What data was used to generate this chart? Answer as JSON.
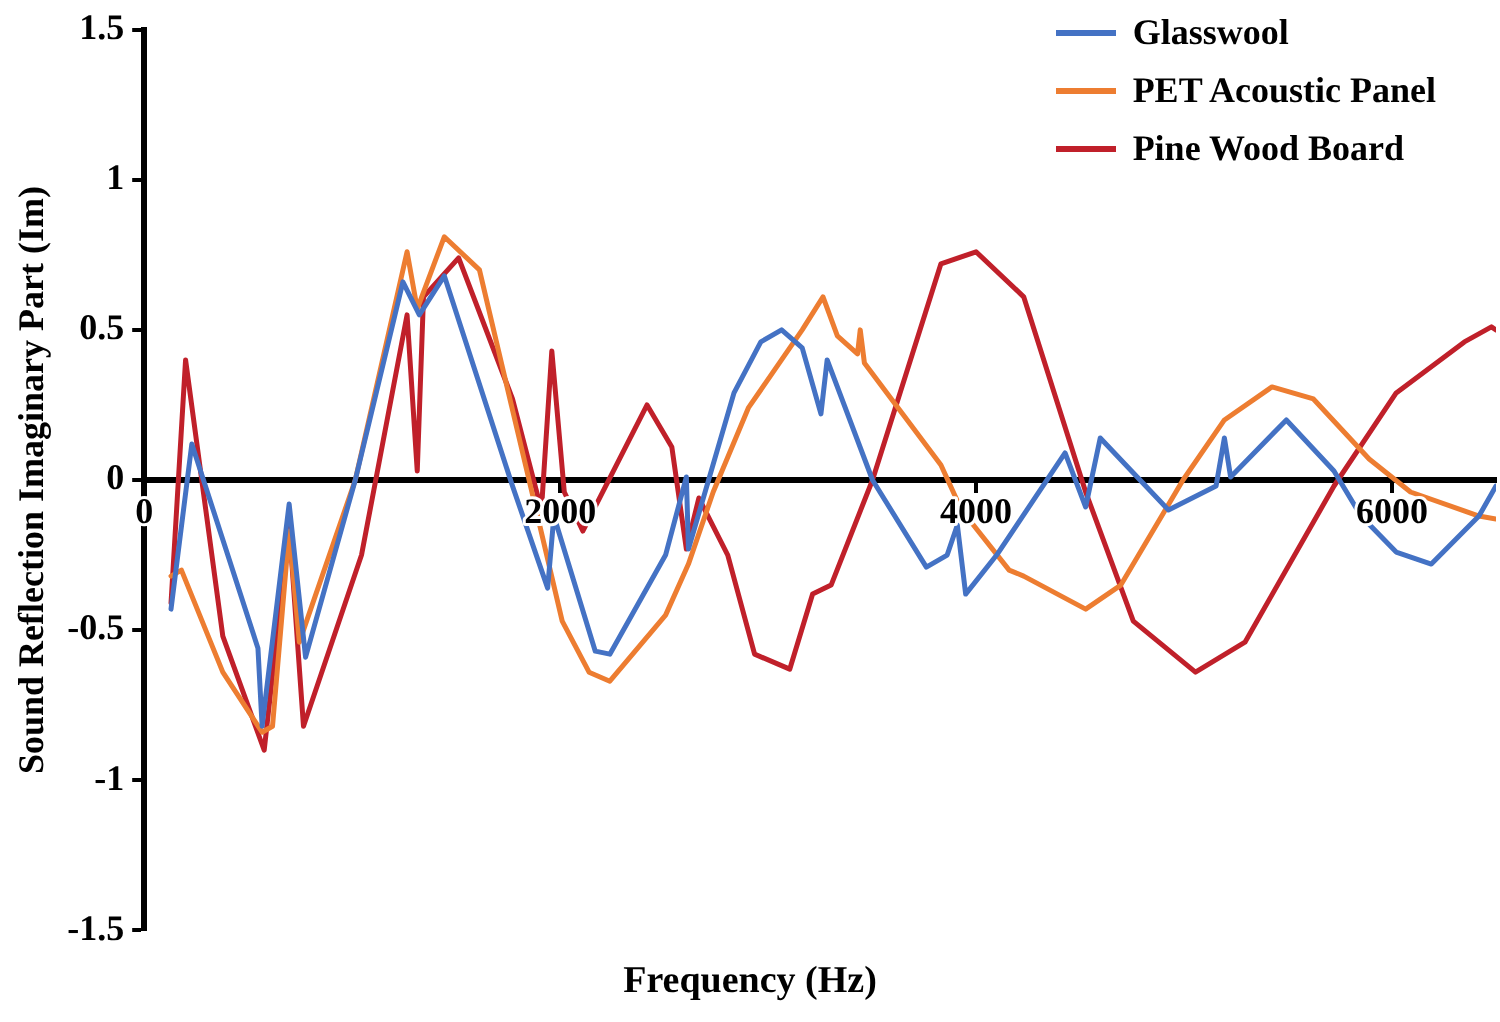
{
  "chart_data": {
    "type": "line",
    "xlabel": "Frequency (Hz)",
    "ylabel": "Sound Reflection Imaginary Part (Im)",
    "xlim": [
      0,
      6500
    ],
    "xticks": [
      0,
      2000,
      4000,
      6000
    ],
    "ylim": [
      -1.5,
      1.5
    ],
    "yticks": [
      -1.5,
      -1,
      -0.5,
      0,
      0.5,
      1,
      1.5
    ],
    "grid": false,
    "legend": "top right",
    "marker": "none",
    "line_style": "solid",
    "series": [
      {
        "name": "Glasswool",
        "color": "#4472c4",
        "x": [
          129,
          229,
          547,
          567,
          697,
          776,
          1015,
          1244,
          1323,
          1443,
          1771,
          1940,
          1970,
          2169,
          2239,
          2507,
          2607,
          2617,
          2836,
          2965,
          3065,
          3164,
          3254,
          3284,
          3502,
          3761,
          3861,
          3910,
          3950,
          4099,
          4428,
          4527,
          4597,
          4925,
          5154,
          5194,
          5224,
          5492,
          5721,
          5851,
          6020,
          6189,
          6418,
          6500
        ],
        "values": [
          -0.43,
          0.12,
          -0.56,
          -0.82,
          -0.08,
          -0.59,
          0,
          0.66,
          0.55,
          0.68,
          -0.02,
          -0.36,
          -0.12,
          -0.57,
          -0.58,
          -0.25,
          0.01,
          -0.23,
          0.29,
          0.46,
          0.5,
          0.44,
          0.22,
          0.4,
          0,
          -0.29,
          -0.25,
          -0.15,
          -0.38,
          -0.25,
          0.09,
          -0.09,
          0.14,
          -0.1,
          -0.02,
          0.14,
          0.01,
          0.2,
          0.03,
          -0.12,
          -0.24,
          -0.28,
          -0.12,
          -0.02
        ]
      },
      {
        "name": "PET Acoustic Panel",
        "color": "#ed7d31",
        "x": [
          129,
          179,
          378,
          567,
          617,
          697,
          746,
          1015,
          1264,
          1313,
          1443,
          1612,
          1871,
          2010,
          2139,
          2239,
          2507,
          2617,
          2736,
          2905,
          3164,
          3264,
          3333,
          3430,
          3443,
          3463,
          3831,
          3930,
          4159,
          4229,
          4527,
          4696,
          4995,
          5194,
          5423,
          5622,
          5890,
          6089,
          6418,
          6500
        ],
        "values": [
          -0.32,
          -0.3,
          -0.64,
          -0.84,
          -0.82,
          -0.17,
          -0.54,
          0,
          0.76,
          0.57,
          0.81,
          0.7,
          -0.06,
          -0.47,
          -0.64,
          -0.67,
          -0.45,
          -0.28,
          -0.04,
          0.24,
          0.5,
          0.61,
          0.48,
          0.42,
          0.5,
          0.39,
          0.05,
          -0.1,
          -0.3,
          -0.32,
          -0.43,
          -0.35,
          0,
          0.2,
          0.31,
          0.27,
          0.07,
          -0.04,
          -0.12,
          -0.13
        ]
      },
      {
        "name": "Pine Wood Board",
        "color": "#c0202a",
        "x": [
          129,
          199,
          378,
          577,
          697,
          766,
          1045,
          1264,
          1313,
          1343,
          1512,
          1771,
          1910,
          1960,
          2020,
          2109,
          2418,
          2537,
          2607,
          2667,
          2806,
          2935,
          3104,
          3214,
          3303,
          3502,
          3831,
          4000,
          4199,
          4229,
          4527,
          4756,
          5055,
          5293,
          5721,
          6020,
          6348,
          6478,
          6500
        ],
        "values": [
          -0.41,
          0.4,
          -0.52,
          -0.9,
          -0.15,
          -0.82,
          -0.25,
          0.55,
          0.03,
          0.61,
          0.74,
          0.27,
          -0.1,
          0.43,
          -0.04,
          -0.17,
          0.25,
          0.11,
          -0.23,
          -0.06,
          -0.25,
          -0.58,
          -0.63,
          -0.38,
          -0.35,
          0,
          0.72,
          0.76,
          0.63,
          0.61,
          -0.04,
          -0.47,
          -0.64,
          -0.54,
          -0.02,
          0.29,
          0.46,
          0.51,
          0.5
        ]
      }
    ]
  }
}
